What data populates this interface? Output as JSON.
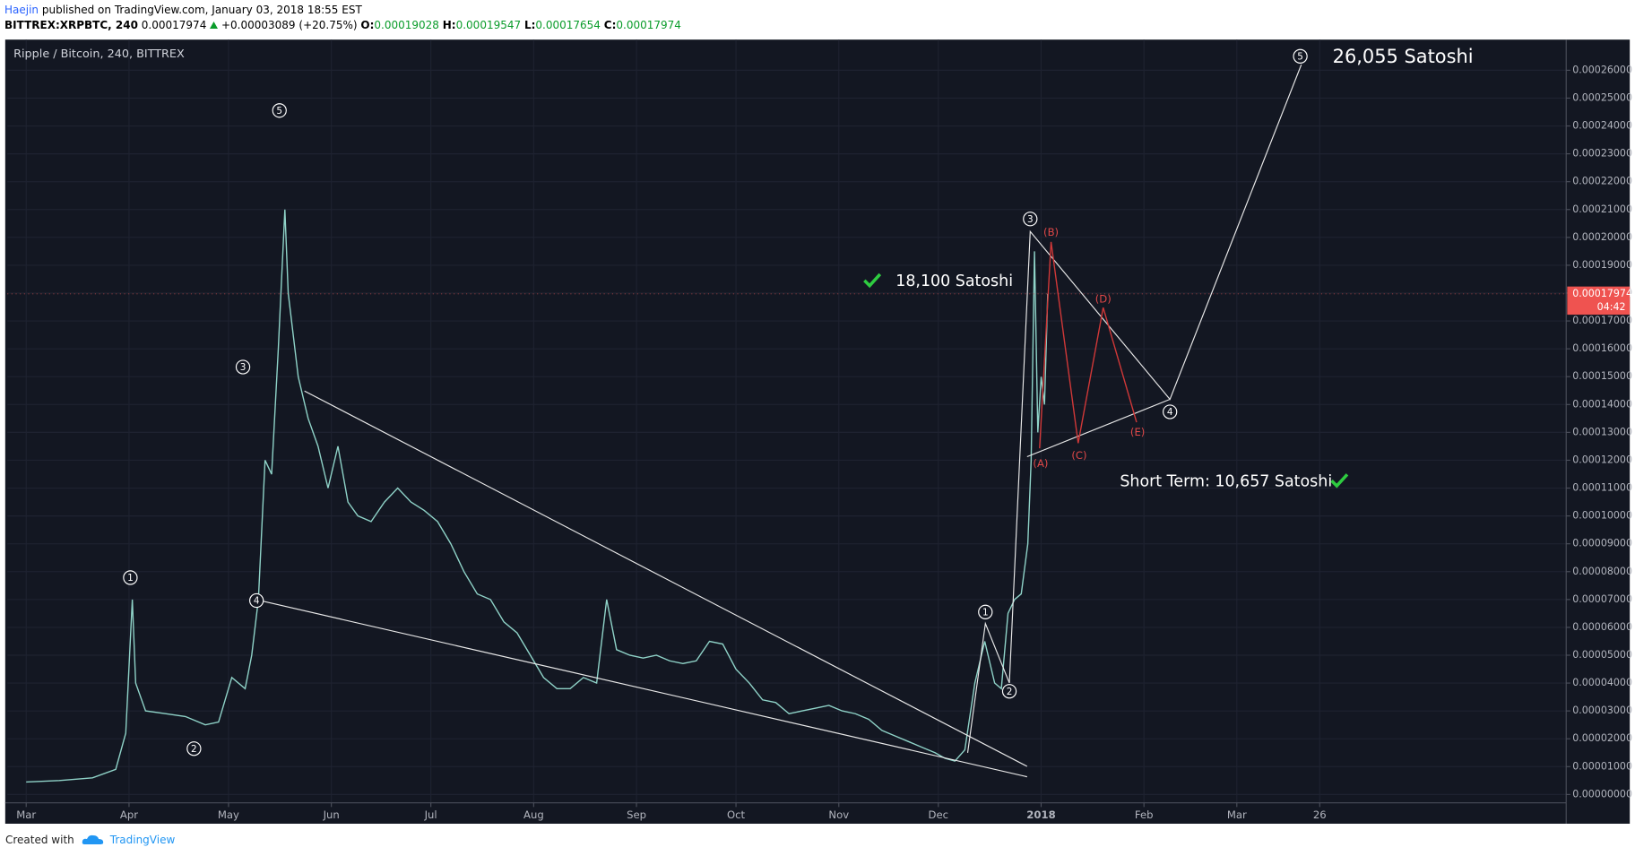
{
  "header": {
    "author": "Haejin",
    "published": "published on TradingView.com, January 03, 2018 18:55 EST",
    "symbol": "BITTREX:XRPBTC, 240",
    "last": "0.00017974",
    "change": "+0.00003089 (+20.75%)",
    "o_label": "O:",
    "o": "0.00019028",
    "h_label": "H:",
    "h": "0.00019547",
    "l_label": "L:",
    "l": "0.00017654",
    "c_label": "C:",
    "c": "0.00017974"
  },
  "chart_data": {
    "type": "line",
    "title": "Ripple / Bitcoin, 240, BITTREX",
    "color": "#8fd3c8",
    "x": [
      0,
      10,
      20,
      27,
      30,
      32,
      33,
      36,
      42,
      48,
      54,
      58,
      62,
      66,
      68,
      70,
      72,
      74,
      76,
      78,
      79,
      82,
      85,
      88,
      91,
      94,
      97,
      100,
      104,
      108,
      112,
      116,
      120,
      124,
      128,
      132,
      136,
      140,
      144,
      148,
      152,
      156,
      160,
      164,
      168,
      172,
      175,
      178,
      182,
      186,
      190,
      194,
      198,
      202,
      206,
      210,
      214,
      218,
      222,
      226,
      230,
      234,
      238,
      242,
      246,
      250,
      254,
      258,
      262,
      266,
      270,
      274,
      277,
      280,
      283,
      286,
      289,
      292,
      294,
      296,
      298,
      300,
      302,
      303,
      304,
      305,
      306,
      307,
      308
    ],
    "values": [
      4.5e-06,
      5e-06,
      6e-06,
      9e-06,
      2.2e-05,
      7e-05,
      4e-05,
      3e-05,
      2.9e-05,
      2.8e-05,
      2.5e-05,
      2.6e-05,
      4.2e-05,
      3.8e-05,
      5e-05,
      7e-05,
      0.00012,
      0.000115,
      0.00016,
      0.00021,
      0.00018,
      0.00015,
      0.000135,
      0.000125,
      0.00011,
      0.000125,
      0.000105,
      0.0001,
      9.8e-05,
      0.000105,
      0.00011,
      0.000105,
      0.000102,
      9.8e-05,
      9e-05,
      8e-05,
      7.2e-05,
      7e-05,
      6.2e-05,
      5.8e-05,
      5e-05,
      4.2e-05,
      3.8e-05,
      3.8e-05,
      4.2e-05,
      4e-05,
      7e-05,
      5.2e-05,
      5e-05,
      4.9e-05,
      5e-05,
      4.8e-05,
      4.7e-05,
      4.8e-05,
      5.5e-05,
      5.4e-05,
      4.5e-05,
      4e-05,
      3.4e-05,
      3.3e-05,
      2.9e-05,
      3e-05,
      3.1e-05,
      3.2e-05,
      3e-05,
      2.9e-05,
      2.7e-05,
      2.3e-05,
      2.1e-05,
      1.9e-05,
      1.7e-05,
      1.5e-05,
      1.3e-05,
      1.2e-05,
      1.6e-05,
      4e-05,
      5.5e-05,
      4e-05,
      3.8e-05,
      6.5e-05,
      7e-05,
      7.2e-05,
      9e-05,
      0.00012,
      0.000195,
      0.00013,
      0.00015,
      0.00014,
      0.00017974
    ],
    "xlim": [
      -5.7,
      464.3
    ],
    "ylim": [
      -3e-06,
      0.000271
    ],
    "xticks": [
      {
        "value": 0,
        "label": "Mar"
      },
      {
        "value": 31,
        "label": "Apr"
      },
      {
        "value": 61,
        "label": "May"
      },
      {
        "value": 92,
        "label": "Jun"
      },
      {
        "value": 122,
        "label": "Jul"
      },
      {
        "value": 153,
        "label": "Aug"
      },
      {
        "value": 184,
        "label": "Sep"
      },
      {
        "value": 214,
        "label": "Oct"
      },
      {
        "value": 245,
        "label": "Nov"
      },
      {
        "value": 275,
        "label": "Dec"
      },
      {
        "value": 306,
        "label": "2018"
      },
      {
        "value": 337,
        "label": "Feb"
      },
      {
        "value": 365,
        "label": "Mar"
      },
      {
        "value": 390,
        "label": "26"
      }
    ],
    "yticks": [
      {
        "value": 0,
        "label": "0.00000000"
      },
      {
        "value": 1e-05,
        "label": "0.00001000"
      },
      {
        "value": 2e-05,
        "label": "0.00002000"
      },
      {
        "value": 3e-05,
        "label": "0.00003000"
      },
      {
        "value": 4e-05,
        "label": "0.00004000"
      },
      {
        "value": 5e-05,
        "label": "0.00005000"
      },
      {
        "value": 6e-05,
        "label": "0.00006000"
      },
      {
        "value": 7e-05,
        "label": "0.00007000"
      },
      {
        "value": 8e-05,
        "label": "0.00008000"
      },
      {
        "value": 9e-05,
        "label": "0.00009000"
      },
      {
        "value": 0.0001,
        "label": "0.00010000"
      },
      {
        "value": 0.00011,
        "label": "0.00011000"
      },
      {
        "value": 0.00012,
        "label": "0.00012000"
      },
      {
        "value": 0.00013,
        "label": "0.00013000"
      },
      {
        "value": 0.00014,
        "label": "0.00014000"
      },
      {
        "value": 0.00015,
        "label": "0.00015000"
      },
      {
        "value": 0.00016,
        "label": "0.00016000"
      },
      {
        "value": 0.00017,
        "label": "0.00017000"
      },
      {
        "value": 0.00018,
        "label": "0.00018000"
      },
      {
        "value": 0.00019,
        "label": "0.00019000"
      },
      {
        "value": 0.0002,
        "label": "0.00020000"
      },
      {
        "value": 0.00021,
        "label": "0.00021000"
      },
      {
        "value": 0.00022,
        "label": "0.00022000"
      },
      {
        "value": 0.00023,
        "label": "0.00023000"
      },
      {
        "value": 0.00024,
        "label": "0.00024000"
      },
      {
        "value": 0.00025,
        "label": "0.00025000"
      },
      {
        "value": 0.00026,
        "label": "0.00026000"
      }
    ],
    "grid": true,
    "last_price": {
      "value": 0.00017974,
      "label": "0.00017974"
    },
    "countdown": "04:42",
    "annotations": {
      "targets": [
        "26,055 Satoshi",
        "18,100 Satoshi",
        "Short Term: 10,657 Satoshi"
      ],
      "waves": [
        "1",
        "2",
        "3",
        "4",
        "5",
        "1",
        "2",
        "3",
        "4",
        "5"
      ],
      "corrective": [
        "(A)",
        "(B)",
        "(C)",
        "(D)",
        "(E)"
      ]
    }
  },
  "footer": {
    "created": "Created with",
    "brand": "TradingView"
  }
}
